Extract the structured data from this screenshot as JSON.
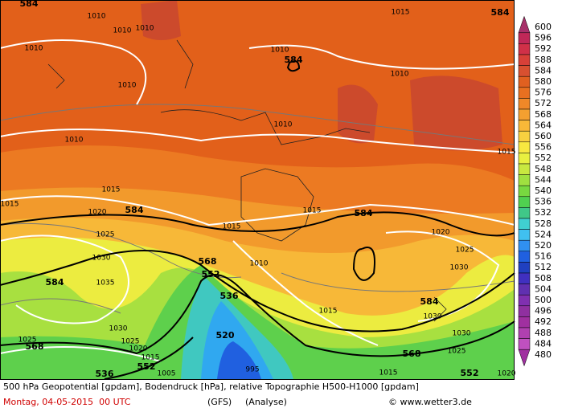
{
  "map": {
    "pressure_labels": [
      "1010",
      "1010",
      "1010",
      "1010",
      "1010",
      "1010",
      "1010",
      "1010",
      "1010",
      "1015",
      "1015",
      "1015",
      "1015",
      "1015",
      "1015",
      "1020",
      "1020",
      "1025",
      "1025",
      "1030",
      "1030",
      "1035",
      "1030",
      "1025",
      "1025",
      "1020",
      "1015",
      "1005",
      "1010",
      "1015",
      "1030",
      "1030",
      "1025",
      "1020",
      "1015",
      "995"
    ],
    "height_labels": [
      "584",
      "584",
      "584",
      "584",
      "584",
      "568",
      "552",
      "536",
      "520",
      "568",
      "552",
      "536",
      "584",
      "568",
      "552",
      "584"
    ]
  },
  "colorbar": {
    "labels": [
      600,
      596,
      592,
      588,
      584,
      580,
      576,
      572,
      568,
      564,
      560,
      556,
      552,
      548,
      544,
      540,
      536,
      532,
      528,
      524,
      520,
      516,
      512,
      508,
      504,
      500,
      496,
      492,
      488,
      484,
      480
    ],
    "colors": [
      "#a8306a",
      "#c02858",
      "#d03048",
      "#d84038",
      "#d85030",
      "#e06020",
      "#e87020",
      "#f08828",
      "#f4a030",
      "#f8b838",
      "#f8d040",
      "#f8e840",
      "#e8f040",
      "#c8e840",
      "#a0e040",
      "#78d840",
      "#50d050",
      "#40c888",
      "#40d0d0",
      "#40c0f0",
      "#3090f0",
      "#2060e0",
      "#2040c0",
      "#4030c0",
      "#6030b0",
      "#8030b0",
      "#9030a0",
      "#a030a0",
      "#b040b0",
      "#c050c0",
      "#a030a0"
    ]
  },
  "footer": {
    "description": "500 hPa Geopotential [gpdam], Bodendruck [hPa], relative Topographie H500-H1000 [gpdam]",
    "date": "Montag, 04-05-2015  00 UTC",
    "model": "(GFS)",
    "run": "(Analyse)",
    "credit": "© www.wetter3.de"
  }
}
